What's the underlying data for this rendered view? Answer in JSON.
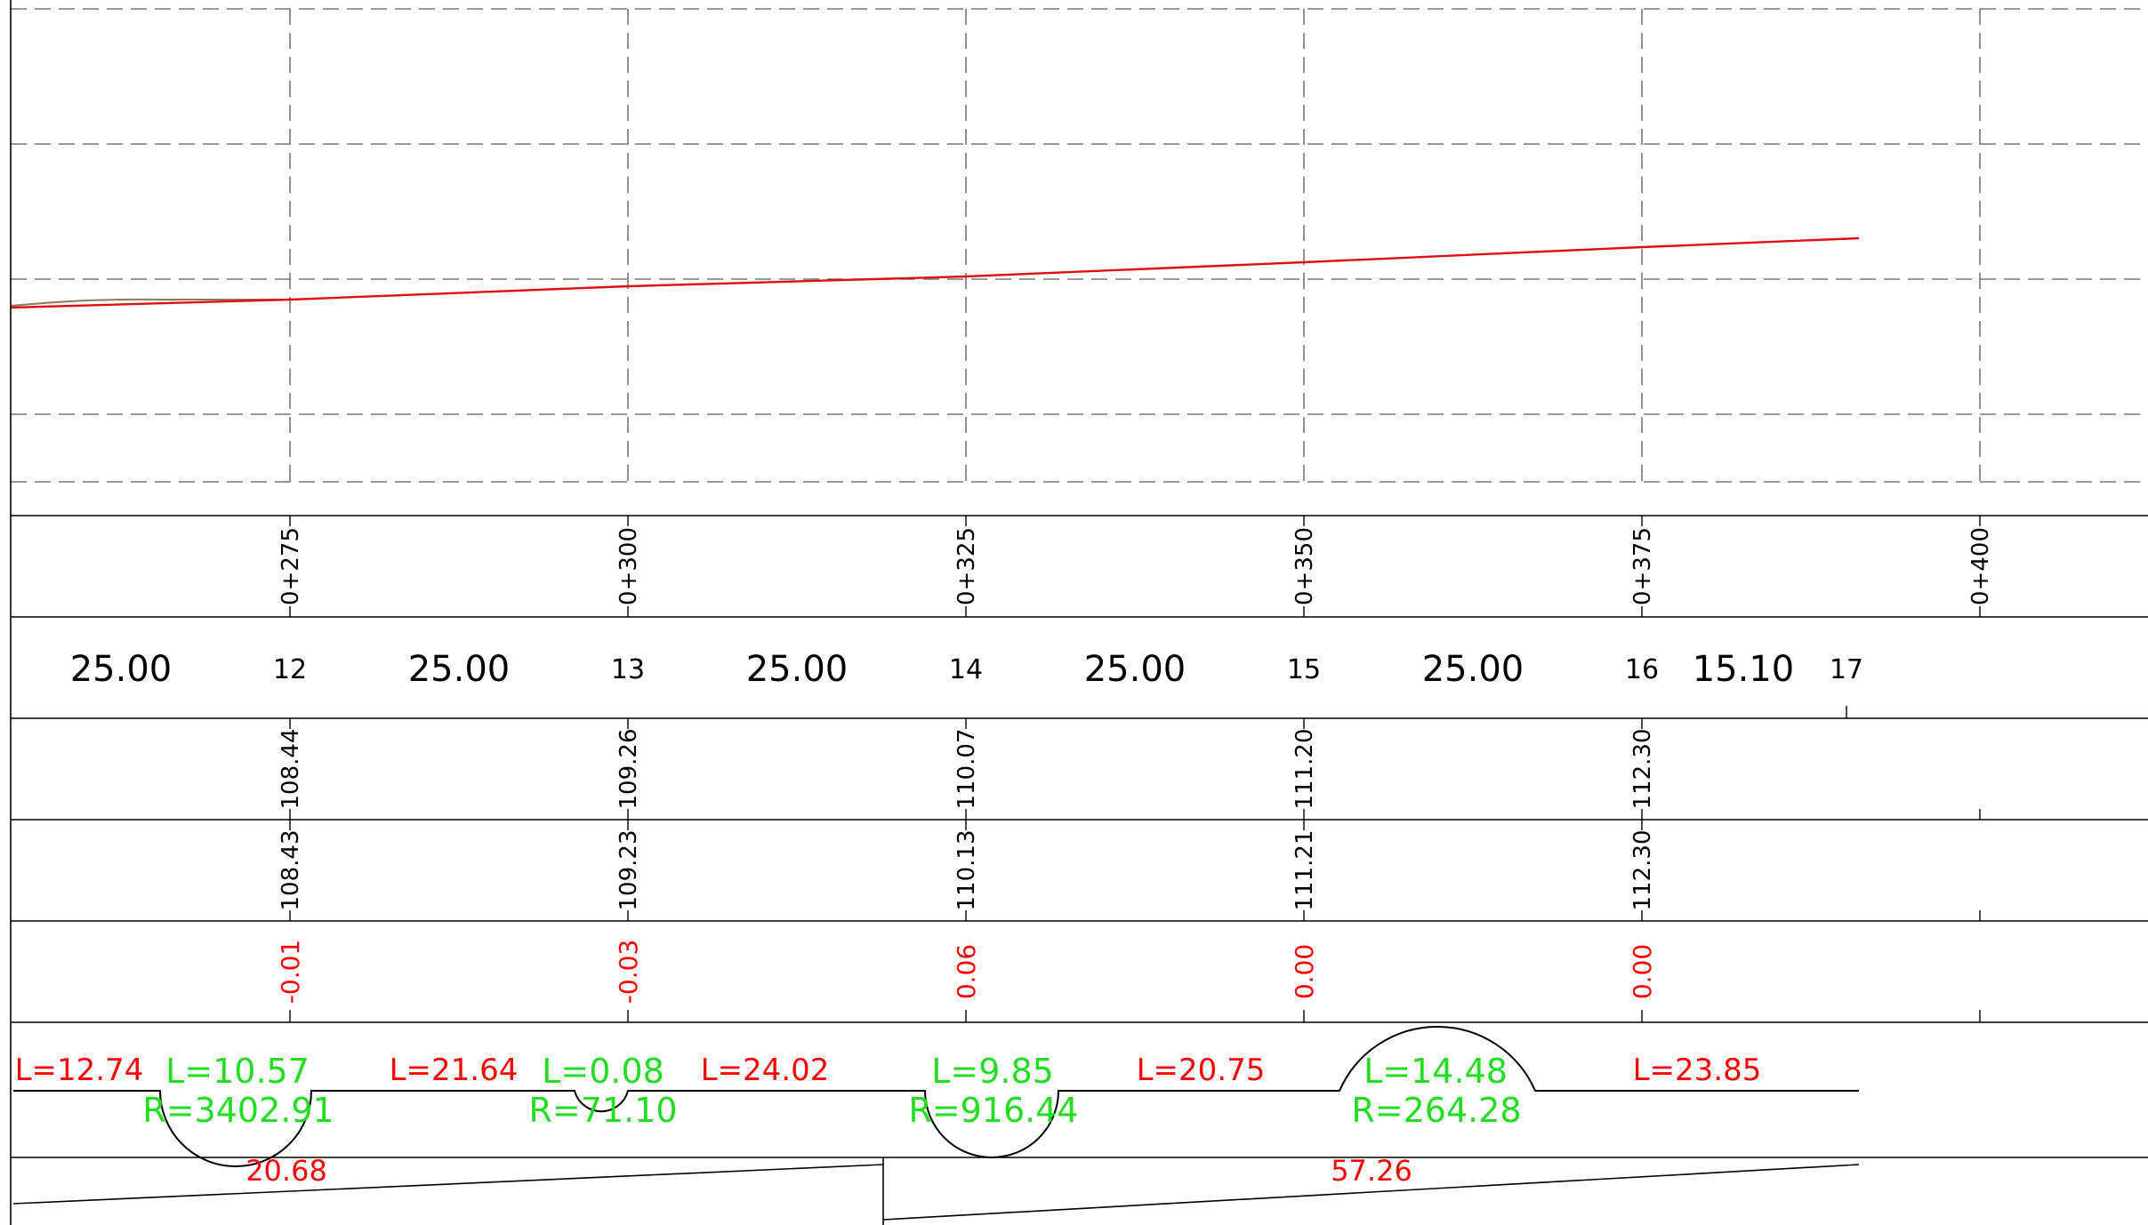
{
  "colors": {
    "frame": "#000000",
    "grid": "#777777",
    "profile_line": "#dd1111",
    "ground_line": "#8a7a5a",
    "red_text": "#ff0000",
    "green_text": "#22dd22"
  },
  "chainage_labels": [
    "0+275",
    "0+300",
    "0+325",
    "0+350",
    "0+375",
    "0+400"
  ],
  "distances": [
    {
      "value": "25.00"
    },
    {
      "value": "25.00"
    },
    {
      "value": "25.00"
    },
    {
      "value": "25.00"
    },
    {
      "value": "25.00"
    },
    {
      "value": "15.10"
    }
  ],
  "point_numbers": [
    "12",
    "13",
    "14",
    "15",
    "16",
    "17"
  ],
  "elevations_row1": [
    "108.44",
    "109.26",
    "110.07",
    "111.20",
    "112.30"
  ],
  "elevations_row2": [
    "108.43",
    "109.23",
    "110.13",
    "111.21",
    "112.30"
  ],
  "differences": [
    "-0.01",
    "-0.03",
    "0.06",
    "0.00",
    "0.00"
  ],
  "alignment": {
    "straights": [
      "L=12.74",
      "L=21.64",
      "L=24.02",
      "L=20.75",
      "L=23.85"
    ],
    "curves": [
      {
        "length": "L=10.57",
        "radius": "R=3402.91"
      },
      {
        "length": "L=0.08",
        "radius": "R=71.10"
      },
      {
        "length": "L=9.85",
        "radius": "R=916.44"
      },
      {
        "length": "L=14.48",
        "radius": "R=264.28"
      }
    ]
  },
  "grades": [
    "20.68",
    "57.26"
  ]
}
